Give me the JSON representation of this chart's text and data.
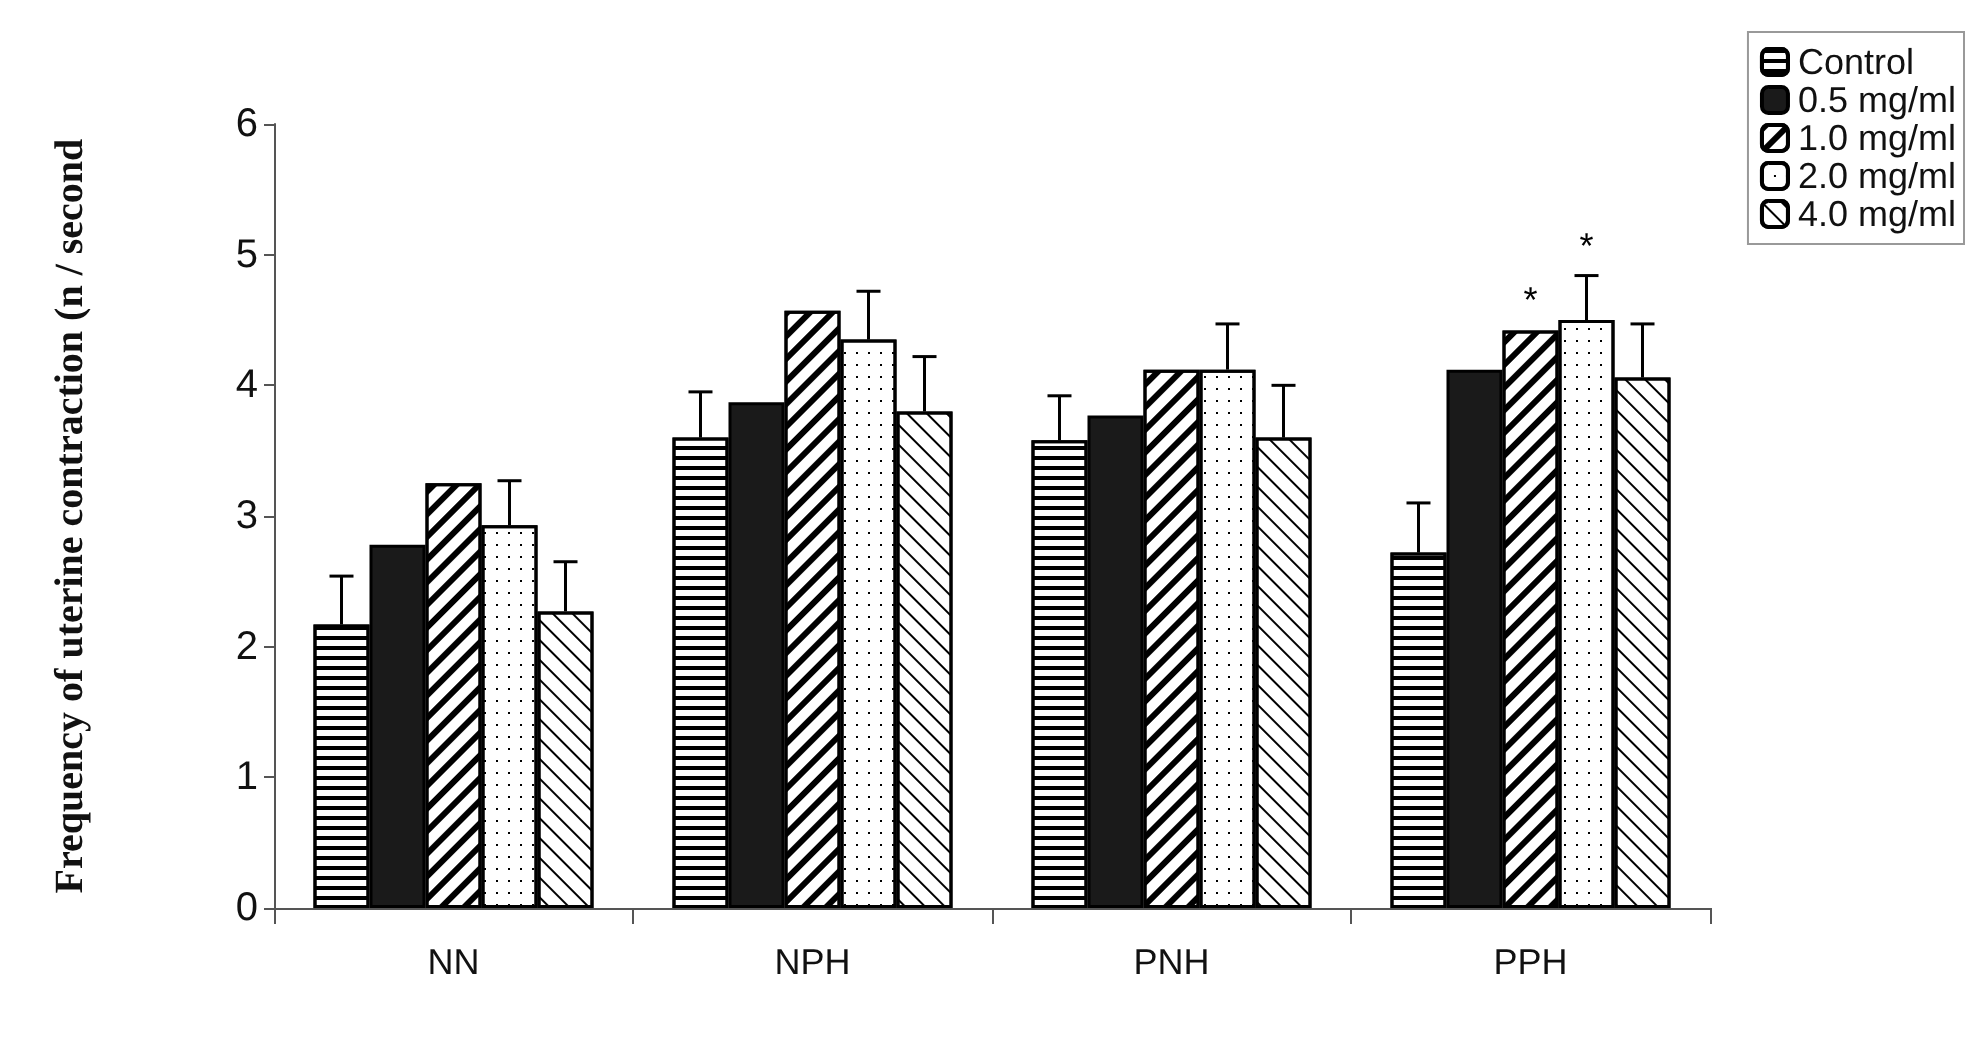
{
  "chart_data": {
    "type": "bar",
    "ylabel": "Frequency of uterine contraction (n / second",
    "categories": [
      "NN",
      "NPH",
      "PNH",
      "PPH"
    ],
    "series": [
      {
        "name": "Control",
        "color": "#ffffff",
        "values": [
          2.17,
          3.6,
          3.58,
          2.72
        ],
        "errors": [
          [
            2.17,
            2.54
          ],
          [
            3.6,
            3.95
          ],
          [
            3.58,
            3.92
          ],
          [
            2.72,
            3.1
          ]
        ]
      },
      {
        "name": "0.5 mg/ml",
        "color": "#1a1a1a",
        "values": [
          2.78,
          3.87,
          3.77,
          4.12
        ]
      },
      {
        "name": "1.0 mg/ml",
        "color": "#ffffff",
        "values": [
          3.25,
          4.57,
          4.12,
          4.42
        ]
      },
      {
        "name": "2.0 mg/ml",
        "color": "#ffffff",
        "values": [
          2.93,
          4.35,
          4.12,
          4.5
        ],
        "errors": [
          [
            2.93,
            3.27
          ],
          [
            4.35,
            4.72
          ],
          [
            4.12,
            4.47
          ],
          [
            4.5,
            4.84
          ]
        ]
      },
      {
        "name": "4.0 mg/ml",
        "color": "#ffffff",
        "values": [
          2.27,
          3.8,
          3.6,
          4.06
        ],
        "errors": [
          [
            2.27,
            2.65
          ],
          [
            3.8,
            4.22
          ],
          [
            3.6,
            4.0
          ],
          [
            4.06,
            4.47
          ]
        ]
      }
    ],
    "annotations": [
      "*",
      "*"
    ],
    "ylim": [
      0,
      6
    ],
    "yticks": [
      0,
      1,
      2,
      3,
      4,
      5,
      6
    ],
    "grid": false,
    "legend": "top right"
  }
}
